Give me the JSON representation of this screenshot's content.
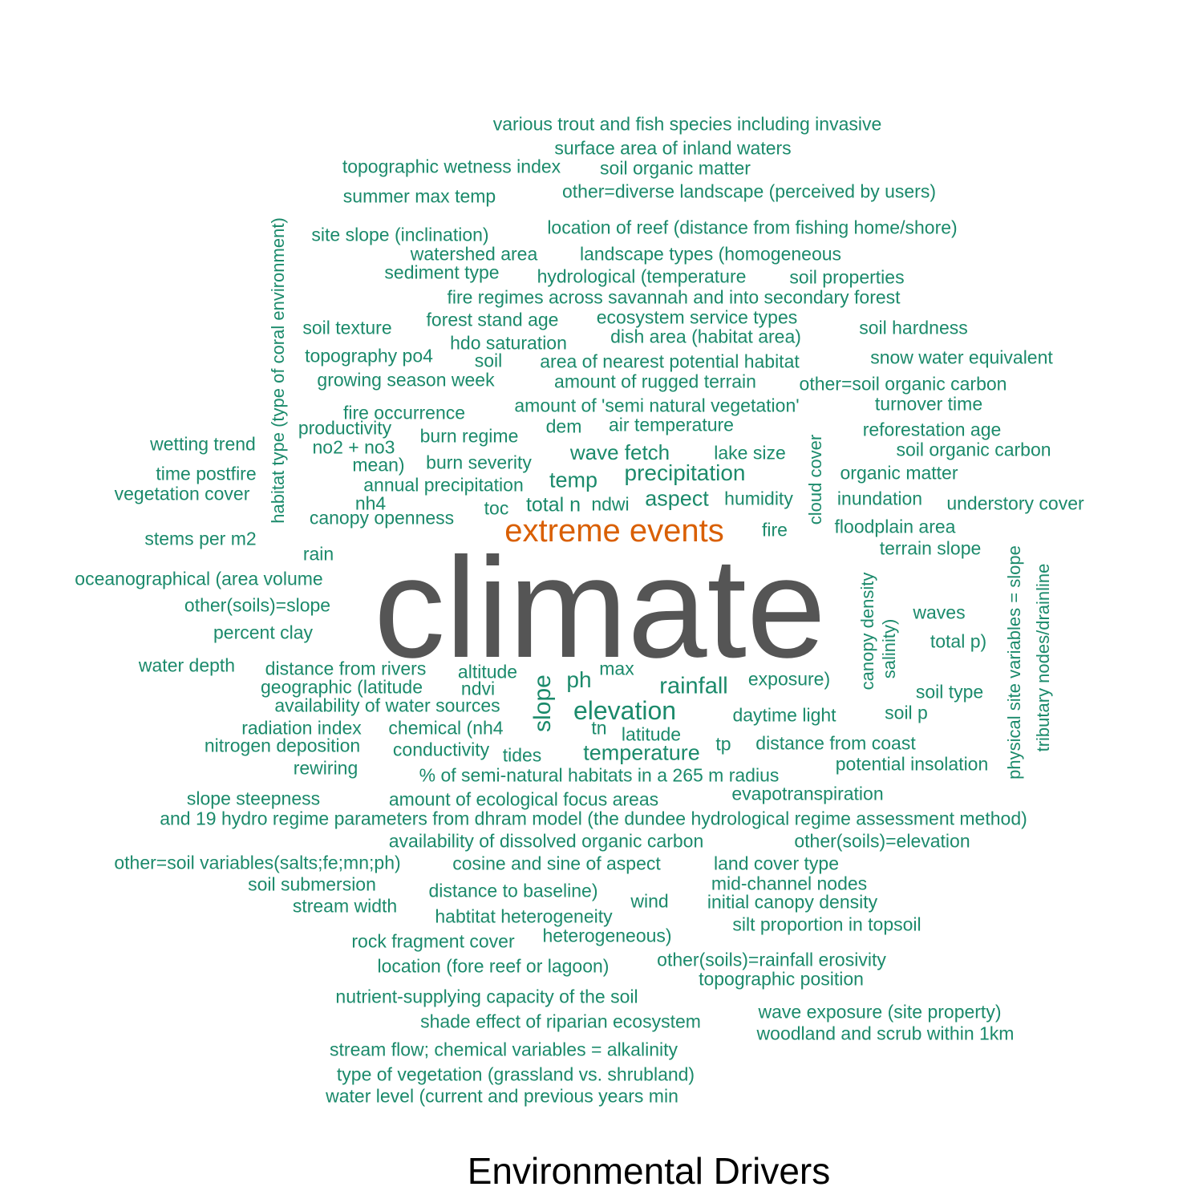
{
  "title": "Environmental Drivers",
  "colors": {
    "default": "#1b8a6b",
    "secondary": "#d95f02",
    "primary": "#555555"
  },
  "words": [
    {
      "text": "climate",
      "weight": 1,
      "color": "primary"
    },
    {
      "text": "extreme events",
      "weight": 0.3,
      "color": "secondary"
    },
    {
      "text": "slope",
      "weight": 0.15
    },
    {
      "text": "elevation",
      "weight": 0.15
    },
    {
      "text": "rainfall",
      "weight": 0.14
    },
    {
      "text": "precipitation",
      "weight": 0.14
    },
    {
      "text": "temperature",
      "weight": 0.13
    },
    {
      "text": "aspect",
      "weight": 0.13
    },
    {
      "text": "temp",
      "weight": 0.13
    },
    {
      "text": "ph",
      "weight": 0.13
    },
    {
      "text": "wave fetch",
      "weight": 0.12
    },
    {
      "text": "total n",
      "weight": 0.12
    },
    {
      "text": "various trout and fish species including invasive",
      "weight": 0.1
    },
    {
      "text": "surface area of inland waters",
      "weight": 0.1
    },
    {
      "text": "topographic wetness index",
      "weight": 0.1
    },
    {
      "text": "soil organic matter",
      "weight": 0.1
    },
    {
      "text": "summer max temp",
      "weight": 0.1
    },
    {
      "text": "other=diverse landscape (perceived by users)",
      "weight": 0.1
    },
    {
      "text": "habitat type (type of coral environment)",
      "weight": 0.1
    },
    {
      "text": "location of reef (distance from fishing home/shore)",
      "weight": 0.1
    },
    {
      "text": "site slope (inclination)",
      "weight": 0.1
    },
    {
      "text": "watershed area",
      "weight": 0.1
    },
    {
      "text": "landscape types (homogeneous",
      "weight": 0.1
    },
    {
      "text": "sediment type",
      "weight": 0.1
    },
    {
      "text": "hydrological (temperature",
      "weight": 0.1
    },
    {
      "text": "soil properties",
      "weight": 0.1
    },
    {
      "text": "fire regimes across savannah and into secondary forest",
      "weight": 0.1
    },
    {
      "text": "forest stand age",
      "weight": 0.1
    },
    {
      "text": "ecosystem service types",
      "weight": 0.1
    },
    {
      "text": "soil texture",
      "weight": 0.1
    },
    {
      "text": "dish area (habitat area)",
      "weight": 0.1
    },
    {
      "text": "soil hardness",
      "weight": 0.1
    },
    {
      "text": "hdo saturation",
      "weight": 0.1
    },
    {
      "text": "topography po4",
      "weight": 0.1
    },
    {
      "text": "soil",
      "weight": 0.1
    },
    {
      "text": "area of nearest potential habitat",
      "weight": 0.1
    },
    {
      "text": "snow water equivalent",
      "weight": 0.1
    },
    {
      "text": "growing season week",
      "weight": 0.1
    },
    {
      "text": "amount of rugged terrain",
      "weight": 0.1
    },
    {
      "text": "other=soil organic carbon",
      "weight": 0.1
    },
    {
      "text": "amount of 'semi natural vegetation'",
      "weight": 0.1
    },
    {
      "text": "turnover time",
      "weight": 0.1
    },
    {
      "text": "fire occurrence",
      "weight": 0.1
    },
    {
      "text": "productivity",
      "weight": 0.1
    },
    {
      "text": "dem",
      "weight": 0.1
    },
    {
      "text": "air temperature",
      "weight": 0.1
    },
    {
      "text": "reforestation age",
      "weight": 0.1
    },
    {
      "text": "burn regime",
      "weight": 0.1
    },
    {
      "text": "wetting trend",
      "weight": 0.1
    },
    {
      "text": "no2 + no3",
      "weight": 0.1
    },
    {
      "text": "cloud cover",
      "weight": 0.1
    },
    {
      "text": "soil organic carbon",
      "weight": 0.1
    },
    {
      "text": "lake size",
      "weight": 0.1
    },
    {
      "text": "mean)",
      "weight": 0.1
    },
    {
      "text": "burn severity",
      "weight": 0.1
    },
    {
      "text": "time postfire",
      "weight": 0.1
    },
    {
      "text": "organic matter",
      "weight": 0.1
    },
    {
      "text": "annual precipitation",
      "weight": 0.1
    },
    {
      "text": "vegetation cover",
      "weight": 0.1
    },
    {
      "text": "humidity",
      "weight": 0.1
    },
    {
      "text": "inundation",
      "weight": 0.1
    },
    {
      "text": "nh4",
      "weight": 0.1
    },
    {
      "text": "ndwi",
      "weight": 0.1
    },
    {
      "text": "understory cover",
      "weight": 0.1
    },
    {
      "text": "toc",
      "weight": 0.1
    },
    {
      "text": "canopy openness",
      "weight": 0.1
    },
    {
      "text": "physical site variables = slope",
      "weight": 0.1
    },
    {
      "text": "fire",
      "weight": 0.1
    },
    {
      "text": "floodplain area",
      "weight": 0.1
    },
    {
      "text": "stems per m2",
      "weight": 0.1
    },
    {
      "text": "tributary nodes/drainline",
      "weight": 0.1
    },
    {
      "text": "terrain slope",
      "weight": 0.1
    },
    {
      "text": "rain",
      "weight": 0.1
    },
    {
      "text": "canopy density",
      "weight": 0.1
    },
    {
      "text": "oceanographical (area volume",
      "weight": 0.1
    },
    {
      "text": "salinity)",
      "weight": 0.1
    },
    {
      "text": "other(soils)=slope",
      "weight": 0.1
    },
    {
      "text": "waves",
      "weight": 0.1
    },
    {
      "text": "percent clay",
      "weight": 0.1
    },
    {
      "text": "total p)",
      "weight": 0.1
    },
    {
      "text": "water depth",
      "weight": 0.1
    },
    {
      "text": "distance from rivers",
      "weight": 0.1
    },
    {
      "text": "altitude",
      "weight": 0.1
    },
    {
      "text": "max",
      "weight": 0.1
    },
    {
      "text": "exposure)",
      "weight": 0.1
    },
    {
      "text": "geographic (latitude",
      "weight": 0.1
    },
    {
      "text": "ndvi",
      "weight": 0.1
    },
    {
      "text": "soil type",
      "weight": 0.1
    },
    {
      "text": "availability of water sources",
      "weight": 0.1
    },
    {
      "text": "daytime light",
      "weight": 0.1
    },
    {
      "text": "soil p",
      "weight": 0.1
    },
    {
      "text": "radiation index",
      "weight": 0.1
    },
    {
      "text": "chemical (nh4",
      "weight": 0.1
    },
    {
      "text": "tn",
      "weight": 0.1
    },
    {
      "text": "latitude",
      "weight": 0.1
    },
    {
      "text": "nitrogen deposition",
      "weight": 0.1
    },
    {
      "text": "tp",
      "weight": 0.1
    },
    {
      "text": "distance from coast",
      "weight": 0.1
    },
    {
      "text": "conductivity",
      "weight": 0.1
    },
    {
      "text": "tides",
      "weight": 0.1
    },
    {
      "text": "potential insolation",
      "weight": 0.1
    },
    {
      "text": "rewiring",
      "weight": 0.1
    },
    {
      "text": "% of semi-natural habitats in a 265 m radius",
      "weight": 0.1
    },
    {
      "text": "evapotranspiration",
      "weight": 0.1
    },
    {
      "text": "slope steepness",
      "weight": 0.1
    },
    {
      "text": "amount of ecological focus areas",
      "weight": 0.1
    },
    {
      "text": "and 19 hydro regime parameters from dhram model (the dundee hydrological regime assessment method)",
      "weight": 0.1
    },
    {
      "text": "availability of dissolved organic carbon",
      "weight": 0.1
    },
    {
      "text": "other(soils)=elevation",
      "weight": 0.1
    },
    {
      "text": "other=soil variables(salts;fe;mn;ph)",
      "weight": 0.1
    },
    {
      "text": "cosine and sine of aspect",
      "weight": 0.1
    },
    {
      "text": "land cover type",
      "weight": 0.1
    },
    {
      "text": "soil submersion",
      "weight": 0.1
    },
    {
      "text": "mid-channel nodes",
      "weight": 0.1
    },
    {
      "text": "distance to baseline)",
      "weight": 0.1
    },
    {
      "text": "wind",
      "weight": 0.1
    },
    {
      "text": "initial canopy density",
      "weight": 0.1
    },
    {
      "text": "stream width",
      "weight": 0.1
    },
    {
      "text": "habtitat heterogeneity",
      "weight": 0.1
    },
    {
      "text": "silt proportion in topsoil",
      "weight": 0.1
    },
    {
      "text": "heterogeneous)",
      "weight": 0.1
    },
    {
      "text": "rock fragment cover",
      "weight": 0.1
    },
    {
      "text": "other(soils)=rainfall erosivity",
      "weight": 0.1
    },
    {
      "text": "location (fore reef or lagoon)",
      "weight": 0.1
    },
    {
      "text": "topographic position",
      "weight": 0.1
    },
    {
      "text": "nutrient-supplying capacity of the soil",
      "weight": 0.1
    },
    {
      "text": "wave exposure (site property)",
      "weight": 0.1
    },
    {
      "text": "shade effect of riparian ecosystem",
      "weight": 0.1
    },
    {
      "text": "woodland and scrub within 1km",
      "weight": 0.1
    },
    {
      "text": "stream flow; chemical variables = alkalinity",
      "weight": 0.1
    },
    {
      "text": "type of vegetation (grassland vs. shrubland)",
      "weight": 0.1
    },
    {
      "text": "water level (current and previous years min",
      "weight": 0.1
    }
  ]
}
